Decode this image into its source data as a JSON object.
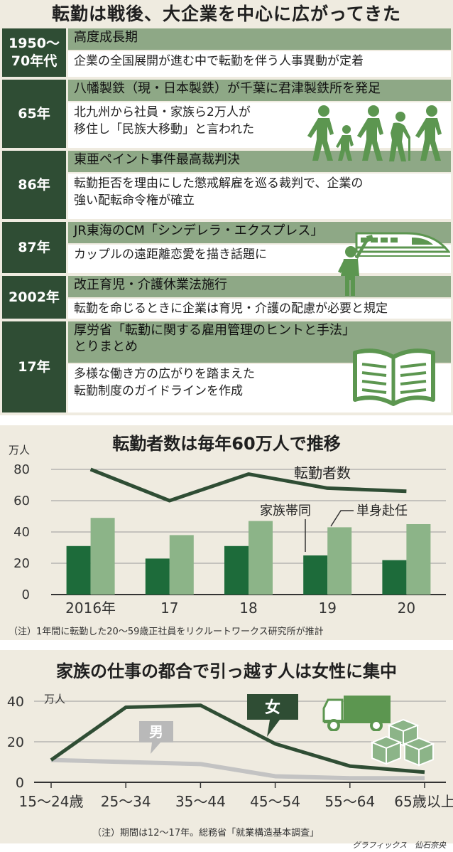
{
  "header": {
    "title": "転勤は戦後、大企業を中心に広がってきた"
  },
  "timeline": [
    {
      "year": "1950〜\n70年代",
      "headline": "高度成長期",
      "detail": "企業の全国展開が進む中で転勤を伴う人事異動が定着"
    },
    {
      "year": "65年",
      "headline": "八幡製鉄（現・日本製鉄）が千葉に君津製鉄所を発足",
      "detail": "北九州から社員・家族ら2万人が\n移住し「民族大移動」と言われた"
    },
    {
      "year": "86年",
      "headline": "東亜ペイント事件最高裁判決",
      "detail": "転勤拒否を理由にした懲戒解雇を巡る裁判で、企業の\n強い配転命令権が確立"
    },
    {
      "year": "87年",
      "headline": "JR東海のCM「シンデレラ・エクスプレス」",
      "detail": "カップルの遠距離恋愛を描き話題に"
    },
    {
      "year": "2002年",
      "headline": "改正育児・介護休業法施行",
      "detail": "転勤を命じるときに企業は育児・介護の配慮が必要と規定"
    },
    {
      "year": "17年",
      "headline": "厚労省「転勤に関する雇用管理のヒントと手法」\nとりまとめ",
      "detail": "多様な働き方の広がりを踏まえた\n転勤制度のガイドラインを作成"
    }
  ],
  "icons": [
    "family-walking-icon",
    "bullet-train-icon",
    "waving-person-icon",
    "open-book-icon",
    "delivery-truck-icon",
    "boxes-icon"
  ],
  "chart_data": [
    {
      "type": "bar",
      "title": "転勤者数は毎年60万人で推移",
      "unit": "万人",
      "categories": [
        "2016年",
        "17",
        "18",
        "19",
        "20"
      ],
      "ylim": [
        0,
        80
      ],
      "yticks": [
        0,
        20,
        40,
        60,
        80
      ],
      "series": [
        {
          "name": "家族帯同",
          "type": "bar",
          "values": [
            31,
            23,
            31,
            25,
            22
          ]
        },
        {
          "name": "単身赴任",
          "type": "bar",
          "values": [
            49,
            38,
            47,
            43,
            45
          ]
        },
        {
          "name": "転勤者数",
          "type": "line",
          "values": [
            80,
            60,
            77,
            68,
            66
          ]
        }
      ],
      "note": "（注）1年間に転勤した20〜59歳正社員をリクルートワークス研究所が推計"
    },
    {
      "type": "line",
      "title": "家族の仕事の都合で引っ越す人は女性に集中",
      "unit": "万人",
      "categories": [
        "15〜24歳",
        "25〜34",
        "35〜44",
        "45〜54",
        "55〜64",
        "65歳以上"
      ],
      "ylim": [
        0,
        40
      ],
      "yticks": [
        0,
        20,
        40
      ],
      "series": [
        {
          "name": "女",
          "values": [
            11,
            37,
            38,
            19,
            8,
            5
          ]
        },
        {
          "name": "男",
          "values": [
            11,
            10,
            9,
            3,
            2,
            2
          ]
        }
      ],
      "note": "（注）期間は12〜17年。総務省「就業構造基本調査」"
    }
  ],
  "credit": "グラフィックス　仙石奈央",
  "colors": {
    "dark_green": "#2f4d34",
    "bar_dark": "#1d6b3a",
    "bar_light": "#8cb488",
    "male_line": "#c3c3c3",
    "panel_bg": "#efebe0"
  }
}
